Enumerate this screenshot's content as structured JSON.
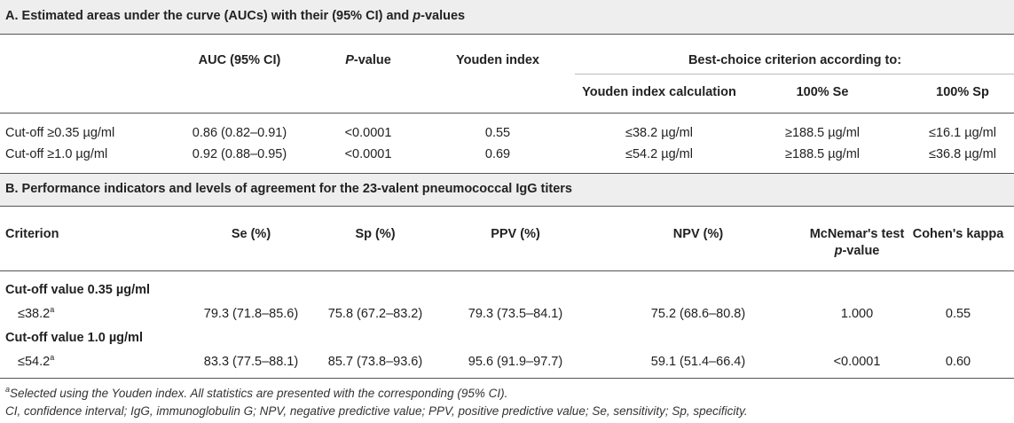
{
  "sectionA": {
    "title_pre": "A. Estimated areas under the curve (AUCs) with their (95% CI) and ",
    "title_p": "p",
    "title_post": "-values",
    "headers": {
      "auc": "AUC (95% CI)",
      "pvalue_p": "P",
      "pvalue_rest": "-value",
      "youden": "Youden index",
      "best_choice": "Best-choice criterion according to:",
      "youden_calc": "Youden index calculation",
      "se100": "100% Se",
      "sp100": "100% Sp"
    },
    "rows": [
      {
        "label": "Cut-off ≥0.35 µg/ml",
        "auc": "0.86 (0.82–0.91)",
        "pvalue": "<0.0001",
        "youden": "0.55",
        "youden_calc": "≤38.2 µg/ml",
        "se100": "≥188.5 µg/ml",
        "sp100": "≤16.1 µg/ml"
      },
      {
        "label": "Cut-off ≥1.0 µg/ml",
        "auc": "0.92 (0.88–0.95)",
        "pvalue": "<0.0001",
        "youden": "0.69",
        "youden_calc": "≤54.2 µg/ml",
        "se100": "≥188.5 µg/ml",
        "sp100": "≤36.8 µg/ml"
      }
    ]
  },
  "sectionB": {
    "title": "B. Performance indicators and levels of agreement for the 23-valent pneumococcal IgG titers",
    "headers": {
      "criterion": "Criterion",
      "se": "Se (%)",
      "sp": "Sp (%)",
      "ppv": "PPV (%)",
      "npv": "NPV (%)",
      "mcnemar_line1": "McNemar's test",
      "mcnemar_line2_p": "p",
      "mcnemar_line2_rest": "-value",
      "kappa": "Cohen's kappa"
    },
    "groups": [
      {
        "title": "Cut-off value 0.35 µg/ml",
        "criterion": "≤38.2",
        "sup": "a",
        "se": "79.3 (71.8–85.6)",
        "sp": "75.8 (67.2–83.2)",
        "ppv": "79.3 (73.5–84.1)",
        "npv": "75.2 (68.6–80.8)",
        "mcnemar": "1.000",
        "kappa": "0.55"
      },
      {
        "title": "Cut-off value 1.0 µg/ml",
        "criterion": "≤54.2",
        "sup": "a",
        "se": "83.3 (77.5–88.1)",
        "sp": "85.7 (73.8–93.6)",
        "ppv": "95.6 (91.9–97.7)",
        "npv": "59.1 (51.4–66.4)",
        "mcnemar": "<0.0001",
        "kappa": "0.60"
      }
    ]
  },
  "footnotes": {
    "note_sup": "a",
    "note_text": "Selected using the Youden index. All statistics are presented with the corresponding (95% CI).",
    "abbreviations": "CI, confidence interval; IgG, immunoglobulin G; NPV, negative predictive value; PPV, positive predictive value; Se, sensitivity; Sp, specificity."
  }
}
